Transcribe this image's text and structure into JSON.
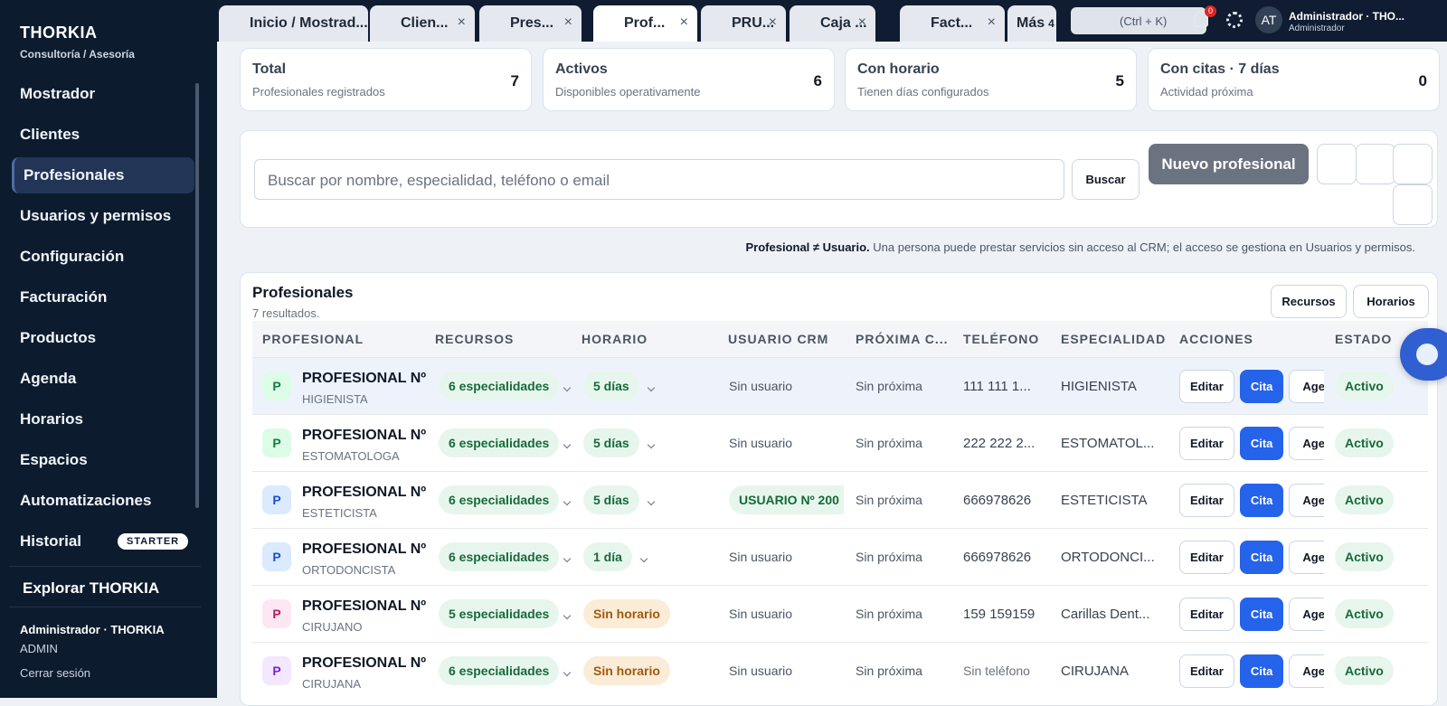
{
  "sidebar": {
    "brand": "THORKIA",
    "subtitle": "Consultoría / Asesoría",
    "nav": [
      "Mostrador",
      "Clientes",
      "Profesionales",
      "Usuarios y permisos",
      "Configuración",
      "Facturación",
      "Productos",
      "Agenda",
      "Horarios",
      "Espacios",
      "Automatizaciones",
      "Historial"
    ],
    "badge": "STARTER",
    "explore": "Explorar THORKIA",
    "user_name": "Administrador · THORKIA",
    "user_role": "ADMIN",
    "logout": "Cerrar sesión"
  },
  "topbar": {
    "tabs": [
      "Inicio / Mostrad...",
      "Clien...",
      "Pres...",
      "Prof...",
      "PRU...",
      "Caja ...",
      "Fact..."
    ],
    "more": "Más",
    "more_count": "4",
    "search": "(Ctrl + K)",
    "notifications": "0",
    "avatar": "AT",
    "user_name": "Administrador · THO...",
    "user_role": "Administrador"
  },
  "stats": [
    {
      "title": "Total",
      "subtitle": "Profesionales registrados",
      "value": "7"
    },
    {
      "title": "Activos",
      "subtitle": "Disponibles operativamente",
      "value": "6"
    },
    {
      "title": "Con horario",
      "subtitle": "Tienen días configurados",
      "value": "5"
    },
    {
      "title": "Con citas · 7 días",
      "subtitle": "Actividad próxima",
      "value": "0"
    }
  ],
  "toolbar": {
    "search_placeholder": "Buscar por nombre, especialidad, teléfono o email",
    "search_button": "Buscar",
    "new_button": "Nuevo profesional"
  },
  "note": {
    "bold": "Profesional ≠ Usuario.",
    "text": "Una persona puede prestar servicios sin acceso al CRM; el acceso se gestiona en Usuarios y permisos."
  },
  "table": {
    "title": "Profesionales",
    "count": "7 resultados.",
    "buttons": [
      "Recursos",
      "Horarios"
    ],
    "columns": [
      "PROFESIONAL",
      "RECURSOS",
      "HORARIO",
      "USUARIO CRM",
      "PRÓXIMA C...",
      "TELÉFONO",
      "ESPECIALIDAD",
      "ACCIONES",
      "ESTADO"
    ],
    "actions": [
      "Editar",
      "Cita",
      "Agenda"
    ],
    "rows": [
      {
        "avatar": "P",
        "name": "PROFESIONAL Nº",
        "role": "HIGIENISTA",
        "resources": "6 especialidades",
        "schedule": "5 días",
        "user": "Sin usuario",
        "next": "Sin próxima",
        "phone": "111 111 1...",
        "specialty": "HIGIENISTA",
        "status": "Activo"
      },
      {
        "avatar": "P",
        "name": "PROFESIONAL Nº",
        "role": "ESTOMATOLOGA",
        "resources": "6 especialidades",
        "schedule": "5 días",
        "user": "Sin usuario",
        "next": "Sin próxima",
        "phone": "222 222 2...",
        "specialty": "ESTOMATOL...",
        "status": "Activo"
      },
      {
        "avatar": "P",
        "name": "PROFESIONAL Nº",
        "role": "ESTETICISTA",
        "resources": "6 especialidades",
        "schedule": "5 días",
        "user": "USUARIO Nº 200",
        "next": "Sin próxima",
        "phone": "666978626",
        "specialty": "ESTETICISTA",
        "status": "Activo"
      },
      {
        "avatar": "P",
        "name": "PROFESIONAL Nº",
        "role": "ORTODONCISTA",
        "resources": "6 especialidades",
        "schedule": "1 día",
        "user": "Sin usuario",
        "next": "Sin próxima",
        "phone": "666978626",
        "specialty": "ORTODONCI...",
        "status": "Activo"
      },
      {
        "avatar": "P",
        "name": "PROFESIONAL Nº",
        "role": "CIRUJANO",
        "resources": "5 especialidades",
        "schedule": "Sin horario",
        "user": "Sin usuario",
        "next": "Sin próxima",
        "phone": "159 159159",
        "specialty": "Carillas Dent...",
        "status": "Activo"
      },
      {
        "avatar": "P",
        "name": "PROFESIONAL Nº",
        "role": "CIRUJANA",
        "resources": "6 especialidades",
        "schedule": "Sin horario",
        "user": "Sin usuario",
        "next": "Sin próxima",
        "phone": "Sin teléfono",
        "specialty": "CIRUJANA",
        "status": "Activo"
      }
    ]
  }
}
